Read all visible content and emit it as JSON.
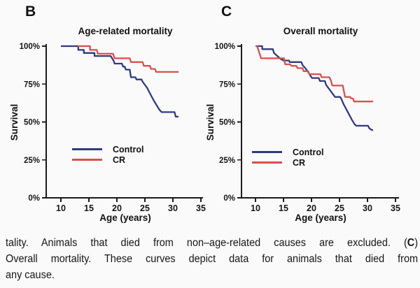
{
  "panels": [
    {
      "letter": "B"
    },
    {
      "letter": "C"
    }
  ],
  "colors": {
    "control": "#2f3b80",
    "cr": "#d9504c",
    "axis": "#1a1a1a",
    "text": "#141414",
    "background": "#fafafa"
  },
  "chart_data": [
    {
      "type": "line",
      "subtype": "kaplan-meier-survival",
      "title": "Age-related mortality",
      "xlabel": "Age (years)",
      "ylabel": "Survival",
      "xlim": [
        7.5,
        35
      ],
      "ylim": [
        0,
        100
      ],
      "xticks": [
        10,
        15,
        20,
        25,
        30,
        35
      ],
      "yticks": [
        {
          "value": 0,
          "label": "0%"
        },
        {
          "value": 25,
          "label": "25%"
        },
        {
          "value": 50,
          "label": "50%"
        },
        {
          "value": 75,
          "label": "75%"
        },
        {
          "value": 100,
          "label": "100%"
        }
      ],
      "grid": false,
      "legend_position": "inside-lower-left",
      "series": [
        {
          "name": "Control",
          "color": "#2f3b80",
          "points": [
            [
              10,
              100
            ],
            [
              13.1,
              100
            ],
            [
              13.1,
              97.5
            ],
            [
              14.1,
              97.5
            ],
            [
              14.1,
              95.5
            ],
            [
              16,
              95.5
            ],
            [
              16,
              93.5
            ],
            [
              18.9,
              93.5
            ],
            [
              19.4,
              90.5
            ],
            [
              19.6,
              88.5
            ],
            [
              20.9,
              88.5
            ],
            [
              21.1,
              86.5
            ],
            [
              21.4,
              86.5
            ],
            [
              21.6,
              84.5
            ],
            [
              22.3,
              84.5
            ],
            [
              22.5,
              79.5
            ],
            [
              23.3,
              79.5
            ],
            [
              23.5,
              78
            ],
            [
              24.4,
              78
            ],
            [
              24.6,
              76.5
            ],
            [
              25.4,
              72.5
            ],
            [
              25.6,
              71
            ],
            [
              26.1,
              67.5
            ],
            [
              26.6,
              64
            ],
            [
              27.1,
              61
            ],
            [
              27.6,
              58
            ],
            [
              28,
              56.5
            ],
            [
              30.3,
              56.5
            ],
            [
              30.5,
              53.5
            ],
            [
              31,
              53.5
            ]
          ]
        },
        {
          "name": "CR",
          "color": "#d9504c",
          "points": [
            [
              13,
              100
            ],
            [
              15.2,
              100
            ],
            [
              15.2,
              97.5
            ],
            [
              16.4,
              97.5
            ],
            [
              16.6,
              95
            ],
            [
              19.3,
              95
            ],
            [
              19.6,
              92
            ],
            [
              22.3,
              92
            ],
            [
              22.5,
              89.5
            ],
            [
              24.6,
              89.5
            ],
            [
              24.8,
              87
            ],
            [
              25.9,
              87
            ],
            [
              26.1,
              85
            ],
            [
              26.8,
              85
            ],
            [
              27,
              83
            ],
            [
              31,
              83
            ]
          ]
        }
      ]
    },
    {
      "type": "line",
      "subtype": "kaplan-meier-survival",
      "title": "Overall mortality",
      "xlabel": "Age (years)",
      "ylabel": "Survival",
      "xlim": [
        7.5,
        35
      ],
      "ylim": [
        0,
        100
      ],
      "xticks": [
        10,
        15,
        20,
        25,
        30,
        35
      ],
      "yticks": [
        {
          "value": 0,
          "label": "0%"
        },
        {
          "value": 25,
          "label": "25%"
        },
        {
          "value": 50,
          "label": "50%"
        },
        {
          "value": 75,
          "label": "75%"
        },
        {
          "value": 100,
          "label": "100%"
        }
      ],
      "grid": false,
      "legend_position": "inside-lower-left",
      "series": [
        {
          "name": "Control",
          "color": "#2f3b80",
          "points": [
            [
              10,
              100
            ],
            [
              11.2,
              100
            ],
            [
              11.2,
              98
            ],
            [
              13.1,
              98
            ],
            [
              13.3,
              95.5
            ],
            [
              13.9,
              93.5
            ],
            [
              14.5,
              91.5
            ],
            [
              15,
              90.5
            ],
            [
              16,
              90.5
            ],
            [
              16.1,
              89.5
            ],
            [
              18.2,
              89.5
            ],
            [
              18.4,
              87.5
            ],
            [
              18.9,
              85.5
            ],
            [
              19.4,
              83
            ],
            [
              19.8,
              80.5
            ],
            [
              20.1,
              79
            ],
            [
              21.3,
              79
            ],
            [
              21.5,
              77
            ],
            [
              22.4,
              77
            ],
            [
              22.6,
              74.5
            ],
            [
              23,
              72.5
            ],
            [
              23.4,
              70.5
            ],
            [
              23.9,
              68
            ],
            [
              24.2,
              66.5
            ],
            [
              25.1,
              66.5
            ],
            [
              25.3,
              65.5
            ],
            [
              25.7,
              62
            ],
            [
              26.2,
              58.5
            ],
            [
              26.7,
              55
            ],
            [
              27.2,
              51.5
            ],
            [
              27.7,
              48.5
            ],
            [
              28,
              47.5
            ],
            [
              30.1,
              47.5
            ],
            [
              30.3,
              46
            ],
            [
              30.6,
              45
            ],
            [
              31,
              44.5
            ]
          ]
        },
        {
          "name": "CR",
          "color": "#d9504c",
          "points": [
            [
              10,
              100
            ],
            [
              10.3,
              100
            ],
            [
              11,
              92
            ],
            [
              15.1,
              92
            ],
            [
              15.3,
              88
            ],
            [
              16.2,
              88
            ],
            [
              16.4,
              87
            ],
            [
              17.3,
              87
            ],
            [
              17.5,
              85.5
            ],
            [
              18.4,
              85.5
            ],
            [
              18.6,
              83.5
            ],
            [
              19.4,
              83.5
            ],
            [
              19.6,
              81.5
            ],
            [
              21.6,
              81.5
            ],
            [
              21.8,
              79.5
            ],
            [
              23.2,
              79.5
            ],
            [
              23.5,
              77
            ],
            [
              23.7,
              74
            ],
            [
              25.6,
              74
            ],
            [
              25.8,
              70
            ],
            [
              26,
              66.5
            ],
            [
              26.9,
              66.5
            ],
            [
              27.1,
              65.5
            ],
            [
              27.4,
              65.5
            ],
            [
              27.6,
              63.5
            ],
            [
              31,
              63.5
            ]
          ]
        }
      ]
    }
  ],
  "caption": {
    "line1_pre": "tality. Animals that died from non–age-related causes are excluded. (",
    "line1_bold": "C",
    "line1_post": ")",
    "line2": "Overall mortality. These curves depict data for animals that died from",
    "line3": "any cause."
  }
}
